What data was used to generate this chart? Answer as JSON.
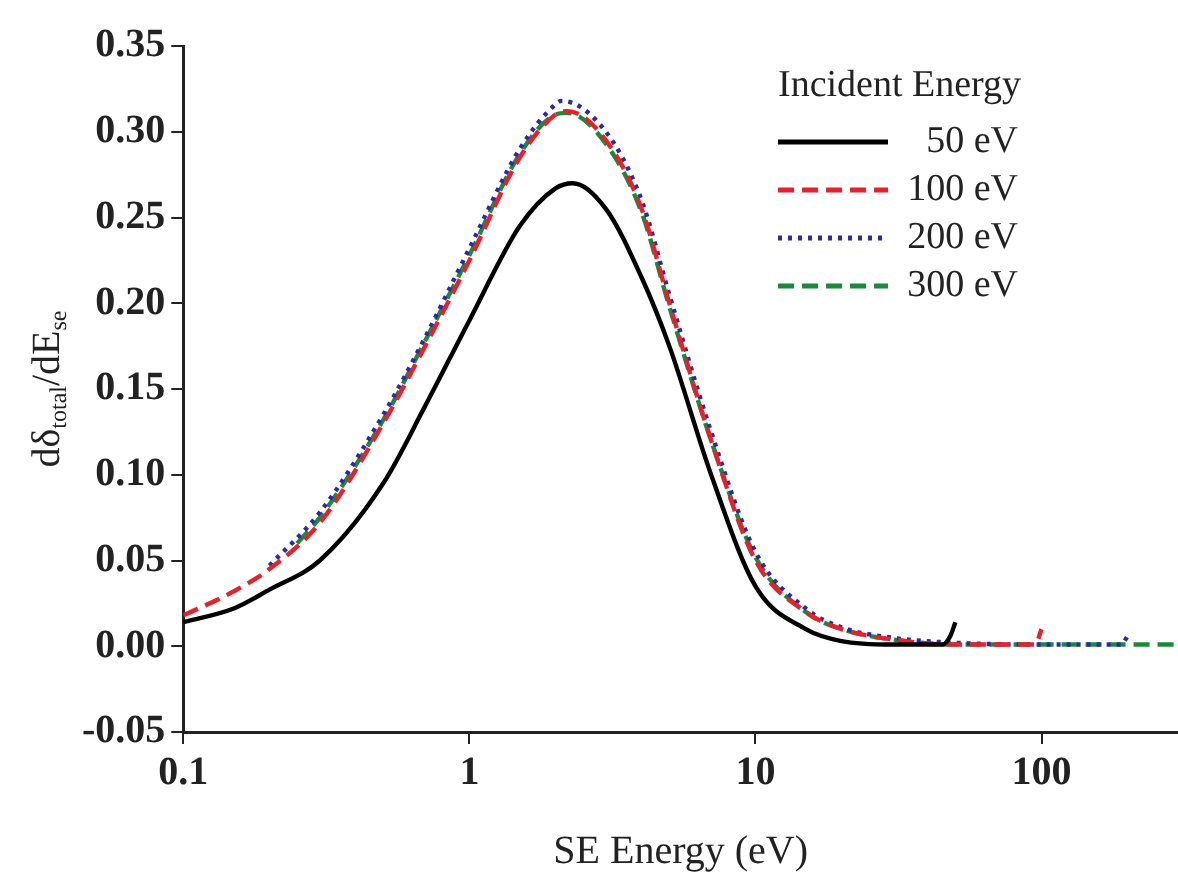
{
  "chart_data": {
    "type": "line",
    "xlabel": "SE Energy (eV)",
    "ylabel": "dδ$_{total}$/dE$_{se}$",
    "legend_title": "Incident Energy",
    "log": "x",
    "xlim": [
      0.1,
      300
    ],
    "xticks": [
      0.1,
      1,
      10,
      100
    ],
    "ylim": [
      -0.05,
      0.35
    ],
    "yticks": [
      {
        "value": -0.05,
        "label": "-0.05"
      },
      {
        "value": 0,
        "label": "0.00"
      },
      {
        "value": 0.05,
        "label": "0.05"
      },
      {
        "value": 0.1,
        "label": "0.10"
      },
      {
        "value": 0.15,
        "label": "0.15"
      },
      {
        "value": 0.2,
        "label": "0.20"
      },
      {
        "value": 0.25,
        "label": "0.25"
      },
      {
        "value": 0.3,
        "label": "0.30"
      },
      {
        "value": 0.35,
        "label": "0.35"
      }
    ],
    "grid": false,
    "legend": "top right",
    "marker": "none",
    "series": [
      {
        "name": "50 eV",
        "color": "#000000",
        "line_style": "solid",
        "x": [
          0.1,
          0.15,
          0.2,
          0.3,
          0.5,
          0.7,
          1,
          1.5,
          2,
          2.3,
          3,
          4,
          5,
          7,
          10,
          15,
          20,
          30,
          45,
          48,
          50
        ],
        "values": [
          0.014,
          0.022,
          0.033,
          0.05,
          0.095,
          0.14,
          0.19,
          0.245,
          0.267,
          0.27,
          0.255,
          0.215,
          0.175,
          0.1,
          0.035,
          0.01,
          0.003,
          0.001,
          0.001,
          0.006,
          0.014
        ]
      },
      {
        "name": "100 eV",
        "color": "#e8202a",
        "line_style": "dashed",
        "x": [
          0.1,
          0.15,
          0.2,
          0.3,
          0.5,
          0.7,
          1,
          1.5,
          2,
          2.2,
          3,
          4,
          5,
          7,
          10,
          15,
          20,
          30,
          50,
          95,
          100
        ],
        "values": [
          0.018,
          0.032,
          0.045,
          0.072,
          0.13,
          0.175,
          0.225,
          0.285,
          0.31,
          0.312,
          0.295,
          0.255,
          0.2,
          0.12,
          0.05,
          0.02,
          0.01,
          0.004,
          0.001,
          0.001,
          0.01
        ]
      },
      {
        "name": "200 eV",
        "color": "#2a2aa8",
        "line_style": "dotted",
        "x": [
          0.2,
          0.3,
          0.5,
          0.7,
          1,
          1.5,
          2,
          2.1,
          3,
          4,
          5,
          7,
          10,
          15,
          20,
          30,
          50,
          100,
          190,
          200
        ],
        "values": [
          0.047,
          0.078,
          0.135,
          0.18,
          0.232,
          0.29,
          0.316,
          0.318,
          0.3,
          0.26,
          0.205,
          0.125,
          0.055,
          0.022,
          0.011,
          0.005,
          0.002,
          0.001,
          0.001,
          0.006
        ]
      },
      {
        "name": "300 eV",
        "color": "#1a8a3a",
        "line_style": "dashed",
        "x": [
          0.25,
          0.3,
          0.5,
          0.7,
          1,
          1.5,
          2,
          2.2,
          3,
          4,
          5,
          7,
          10,
          15,
          20,
          30,
          50,
          100,
          200,
          290,
          300
        ],
        "values": [
          0.06,
          0.075,
          0.132,
          0.178,
          0.228,
          0.287,
          0.31,
          0.311,
          0.293,
          0.253,
          0.198,
          0.12,
          0.052,
          0.02,
          0.01,
          0.004,
          0.001,
          0.001,
          0.001,
          0.001,
          0.004
        ]
      }
    ]
  }
}
